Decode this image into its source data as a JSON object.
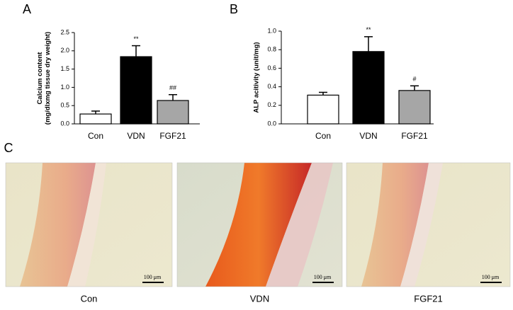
{
  "chart_data": [
    {
      "type": "bar",
      "panel_label": "A",
      "ylabel_lines": [
        "Calcium content",
        "(mg/dlxmg tissue dry weight)"
      ],
      "categories": [
        "Con",
        "VDN",
        "FGF21"
      ],
      "values": [
        0.27,
        1.84,
        0.64
      ],
      "errors": [
        0.08,
        0.3,
        0.16
      ],
      "annotations": [
        null,
        "**",
        "##"
      ],
      "colors": [
        "#ffffff",
        "#000000",
        "#a6a6a6"
      ],
      "ylim": [
        0,
        2.5
      ],
      "yticks": [
        {
          "value": 0,
          "label": "0.0"
        },
        0.5,
        {
          "value": 1,
          "label": "1.0"
        },
        1.5,
        {
          "value": 2,
          "label": "2.0"
        },
        2.5
      ]
    },
    {
      "type": "bar",
      "panel_label": "B",
      "ylabel_lines": [
        "ALP acitivity (unit/mg)"
      ],
      "categories": [
        "Con",
        "VDN",
        "FGF21"
      ],
      "values": [
        0.31,
        0.78,
        0.36
      ],
      "errors": [
        0.03,
        0.16,
        0.05
      ],
      "annotations": [
        null,
        "**",
        "#"
      ],
      "colors": [
        "#ffffff",
        "#000000",
        "#a6a6a6"
      ],
      "ylim": [
        0,
        1
      ],
      "yticks": [
        {
          "value": 0,
          "label": "0.0"
        },
        0.2,
        0.4,
        0.6,
        0.8,
        {
          "value": 1,
          "label": "1.0"
        }
      ]
    }
  ],
  "panel_c": {
    "label": "C",
    "images": [
      {
        "caption": "Con",
        "scale_bar": "100 μm"
      },
      {
        "caption": "VDN",
        "scale_bar": "100 μm"
      },
      {
        "caption": "FGF21",
        "scale_bar": "100 μm"
      }
    ]
  }
}
